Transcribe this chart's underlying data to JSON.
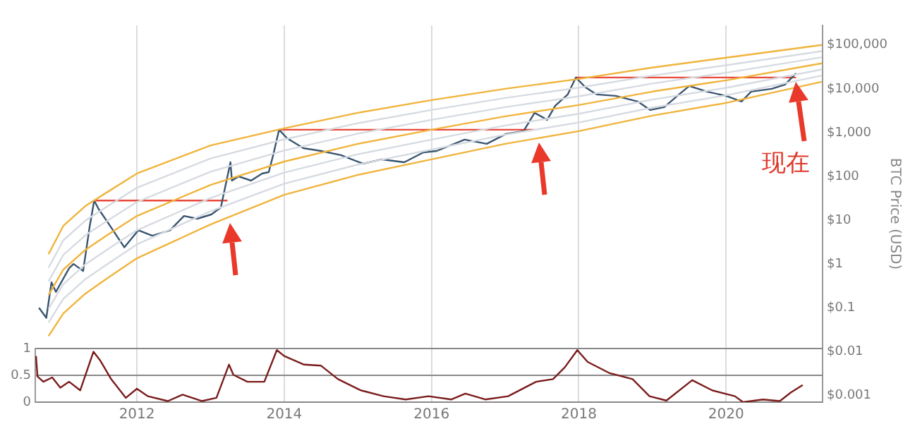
{
  "chart_data": [
    {
      "type": "line",
      "ylabel": "BTC Price (USD)",
      "log": "y",
      "grid": "x",
      "legend": false,
      "marker": "none",
      "tick_labels": "y",
      "xlim": [
        2010.62,
        2021.31
      ],
      "xticks": [
        2012,
        2014,
        2016,
        2018,
        2020
      ],
      "ylim": [
        0.0007,
        280000
      ],
      "yticks": [
        {
          "value": 0.001,
          "label": "$0.001"
        },
        {
          "value": 0.01,
          "label": "$0.01"
        },
        {
          "value": 0.1,
          "label": "$0.1"
        },
        {
          "value": 1,
          "label": "$1"
        },
        {
          "value": 10,
          "label": "$10"
        },
        {
          "value": 100,
          "label": "$100"
        },
        {
          "value": 1000,
          "label": "$1,000"
        },
        {
          "value": 10000,
          "label": "$10,000"
        },
        {
          "value": 100000,
          "label": "$100,000"
        }
      ],
      "annotations": [
        "现在"
      ],
      "series": [
        {
          "color": "#f0b43c",
          "x": [
            2010.8,
            2011.0,
            2011.3,
            2011.6,
            2012.0,
            2013.0,
            2014.0,
            2015.0,
            2016.0,
            2017.0,
            2018.0,
            2019.0,
            2020.0,
            2021.3
          ],
          "values": [
            1.68,
            7.4,
            21,
            44,
            116,
            510,
            1250,
            2830,
            5520,
            10000,
            16800,
            30500,
            51300,
            100000
          ]
        },
        {
          "color": "#d6dbe2",
          "x": [
            2010.8,
            2011.0,
            2011.3,
            2011.6,
            2012.0,
            2013.0,
            2014.0,
            2015.0,
            2016.0,
            2017.0,
            2018.0,
            2019.0,
            2020.0,
            2021.3
          ],
          "values": [
            0.82,
            3.45,
            9.8,
            20.7,
            55,
            256,
            700,
            1640,
            3280,
            6170,
            10600,
            20000,
            34500,
            72400
          ]
        },
        {
          "color": "#d6dbe2",
          "x": [
            2010.8,
            2011.0,
            2011.3,
            2011.6,
            2012.0,
            2013.0,
            2014.0,
            2015.0,
            2016.0,
            2017.0,
            2018.0,
            2019.0,
            2020.0,
            2021.3
          ],
          "values": [
            0.4,
            1.6,
            4.5,
            9.75,
            26,
            128,
            390,
            950,
            1950,
            3810,
            6730,
            13200,
            23200,
            52500
          ]
        },
        {
          "color": "#f0b43c",
          "x": [
            2010.8,
            2011.0,
            2011.3,
            2011.6,
            2012.0,
            2013.0,
            2014.0,
            2015.0,
            2016.0,
            2017.0,
            2018.0,
            2019.0,
            2020.0,
            2021.3
          ],
          "values": [
            0.195,
            0.74,
            2.1,
            4.6,
            12.5,
            64,
            218,
            552,
            1160,
            2350,
            4260,
            8630,
            15600,
            38100
          ]
        },
        {
          "color": "#d6dbe2",
          "x": [
            2010.8,
            2011.0,
            2011.3,
            2011.6,
            2012.0,
            2013.0,
            2014.0,
            2015.0,
            2016.0,
            2017.0,
            2018.0,
            2019.0,
            2020.0,
            2021.3
          ],
          "values": [
            0.095,
            0.345,
            0.98,
            2.15,
            5.9,
            32,
            122,
            320,
            690,
            1450,
            2690,
            5660,
            10500,
            27600
          ]
        },
        {
          "color": "#d6dbe2",
          "x": [
            2010.8,
            2011.0,
            2011.3,
            2011.6,
            2012.0,
            2013.0,
            2014.0,
            2015.0,
            2016.0,
            2017.0,
            2018.0,
            2019.0,
            2020.0,
            2021.3
          ],
          "values": [
            0.046,
            0.16,
            0.45,
            1.0,
            2.8,
            16,
            68,
            186,
            410,
            895,
            1700,
            3720,
            7080,
            20000
          ]
        },
        {
          "color": "#f0b43c",
          "x": [
            2010.8,
            2011.0,
            2011.3,
            2011.6,
            2012.0,
            2013.0,
            2014.0,
            2015.0,
            2016.0,
            2017.0,
            2018.0,
            2019.0,
            2020.0,
            2021.3
          ],
          "values": [
            0.0226,
            0.074,
            0.21,
            0.475,
            1.35,
            8.0,
            38,
            108,
            244,
            552,
            1080,
            2440,
            4750,
            14500
          ]
        },
        {
          "color": "#3a5570",
          "x": [
            2010.67,
            2010.77,
            2010.84,
            2010.9,
            2011.08,
            2011.14,
            2011.27,
            2011.36,
            2011.42,
            2011.48,
            2011.61,
            2011.83,
            2012.02,
            2012.21,
            2012.45,
            2012.64,
            2012.82,
            2013.01,
            2013.14,
            2013.27,
            2013.29,
            2013.38,
            2013.55,
            2013.7,
            2013.79,
            2013.85,
            2013.93,
            2014.04,
            2014.26,
            2014.5,
            2014.77,
            2015.07,
            2015.33,
            2015.63,
            2015.89,
            2016.07,
            2016.45,
            2016.75,
            2017.01,
            2017.25,
            2017.4,
            2017.57,
            2017.68,
            2017.85,
            2017.96,
            2018.09,
            2018.24,
            2018.5,
            2018.8,
            2018.97,
            2019.16,
            2019.36,
            2019.5,
            2019.74,
            2020.0,
            2020.21,
            2020.34,
            2020.62,
            2020.8,
            2020.95
          ],
          "values": [
            0.1,
            0.059,
            0.38,
            0.23,
            0.8,
            1.0,
            0.69,
            7.4,
            28,
            18,
            8.6,
            2.4,
            5.9,
            4.4,
            5.9,
            12.5,
            10.8,
            13.5,
            19.5,
            210,
            80,
            100,
            80,
            116,
            125,
            305,
            1160,
            740,
            440,
            380,
            305,
            195,
            244,
            210,
            353,
            380,
            690,
            552,
            930,
            1080,
            2830,
            1950,
            4100,
            7430,
            18100,
            10800,
            7430,
            6900,
            5130,
            3280,
            3810,
            7430,
            11600,
            8610,
            6900,
            5130,
            8610,
            10000,
            12500,
            22600
          ]
        },
        {
          "color": "#e8483a",
          "x": [
            2011.42,
            2013.23
          ],
          "values": [
            28,
            28
          ]
        },
        {
          "color": "#e8483a",
          "x": [
            2013.93,
            2017.4
          ],
          "values": [
            1160,
            1160
          ]
        },
        {
          "color": "#e8483a",
          "x": [
            2017.96,
            2020.95
          ],
          "values": [
            18100,
            18100
          ]
        }
      ]
    },
    {
      "type": "line",
      "grid": true,
      "legend": false,
      "marker": "none",
      "xlim": [
        2010.62,
        2021.31
      ],
      "xticks": [
        2012,
        2014,
        2016,
        2018,
        2020
      ],
      "ylim": [
        0,
        1
      ],
      "yticks": [
        0,
        0.5,
        1
      ],
      "series": [
        {
          "color": "#7b1c1c",
          "x": [
            2010.63,
            2010.65,
            2010.73,
            2010.85,
            2010.96,
            2011.08,
            2011.23,
            2011.41,
            2011.5,
            2011.65,
            2011.85,
            2012.0,
            2012.15,
            2012.42,
            2012.62,
            2012.88,
            2013.08,
            2013.25,
            2013.31,
            2013.5,
            2013.73,
            2013.9,
            2014.0,
            2014.27,
            2014.5,
            2014.73,
            2015.04,
            2015.35,
            2015.65,
            2015.96,
            2016.27,
            2016.46,
            2016.73,
            2017.04,
            2017.42,
            2017.65,
            2017.81,
            2017.98,
            2018.12,
            2018.42,
            2018.73,
            2018.96,
            2019.19,
            2019.54,
            2019.81,
            2020.12,
            2020.23,
            2020.5,
            2020.73,
            2020.88,
            2021.04
          ],
          "values": [
            0.86,
            0.48,
            0.38,
            0.46,
            0.27,
            0.38,
            0.22,
            0.94,
            0.78,
            0.43,
            0.08,
            0.25,
            0.11,
            0.02,
            0.14,
            0.02,
            0.08,
            0.7,
            0.51,
            0.38,
            0.38,
            0.97,
            0.86,
            0.7,
            0.68,
            0.43,
            0.22,
            0.11,
            0.05,
            0.11,
            0.05,
            0.16,
            0.05,
            0.11,
            0.38,
            0.43,
            0.65,
            0.97,
            0.75,
            0.54,
            0.43,
            0.11,
            0.03,
            0.41,
            0.22,
            0.11,
            0.0,
            0.05,
            0.02,
            0.18,
            0.32
          ]
        }
      ]
    }
  ]
}
